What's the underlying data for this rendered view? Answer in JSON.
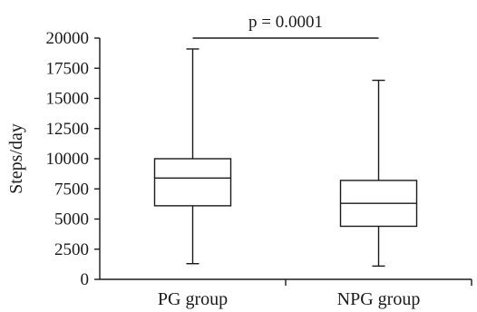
{
  "chart_data": {
    "type": "boxplot",
    "title": "",
    "xlabel": "",
    "ylabel": "Steps/day",
    "ylim": [
      0,
      20000
    ],
    "yticks": [
      0,
      2500,
      5000,
      7500,
      10000,
      12500,
      15000,
      17500,
      20000
    ],
    "categories": [
      "PG group",
      "NPG group"
    ],
    "series": [
      {
        "values": [
          {
            "min": 1300,
            "q1": 6100,
            "median": 8400,
            "q3": 10000,
            "max": 19100
          },
          {
            "min": 1100,
            "q1": 4400,
            "median": 6300,
            "q3": 8200,
            "max": 16500
          }
        ]
      }
    ],
    "annotation": {
      "text": "p = 0.0001",
      "between": [
        0,
        1
      ]
    },
    "grid": false,
    "legend": "none"
  }
}
